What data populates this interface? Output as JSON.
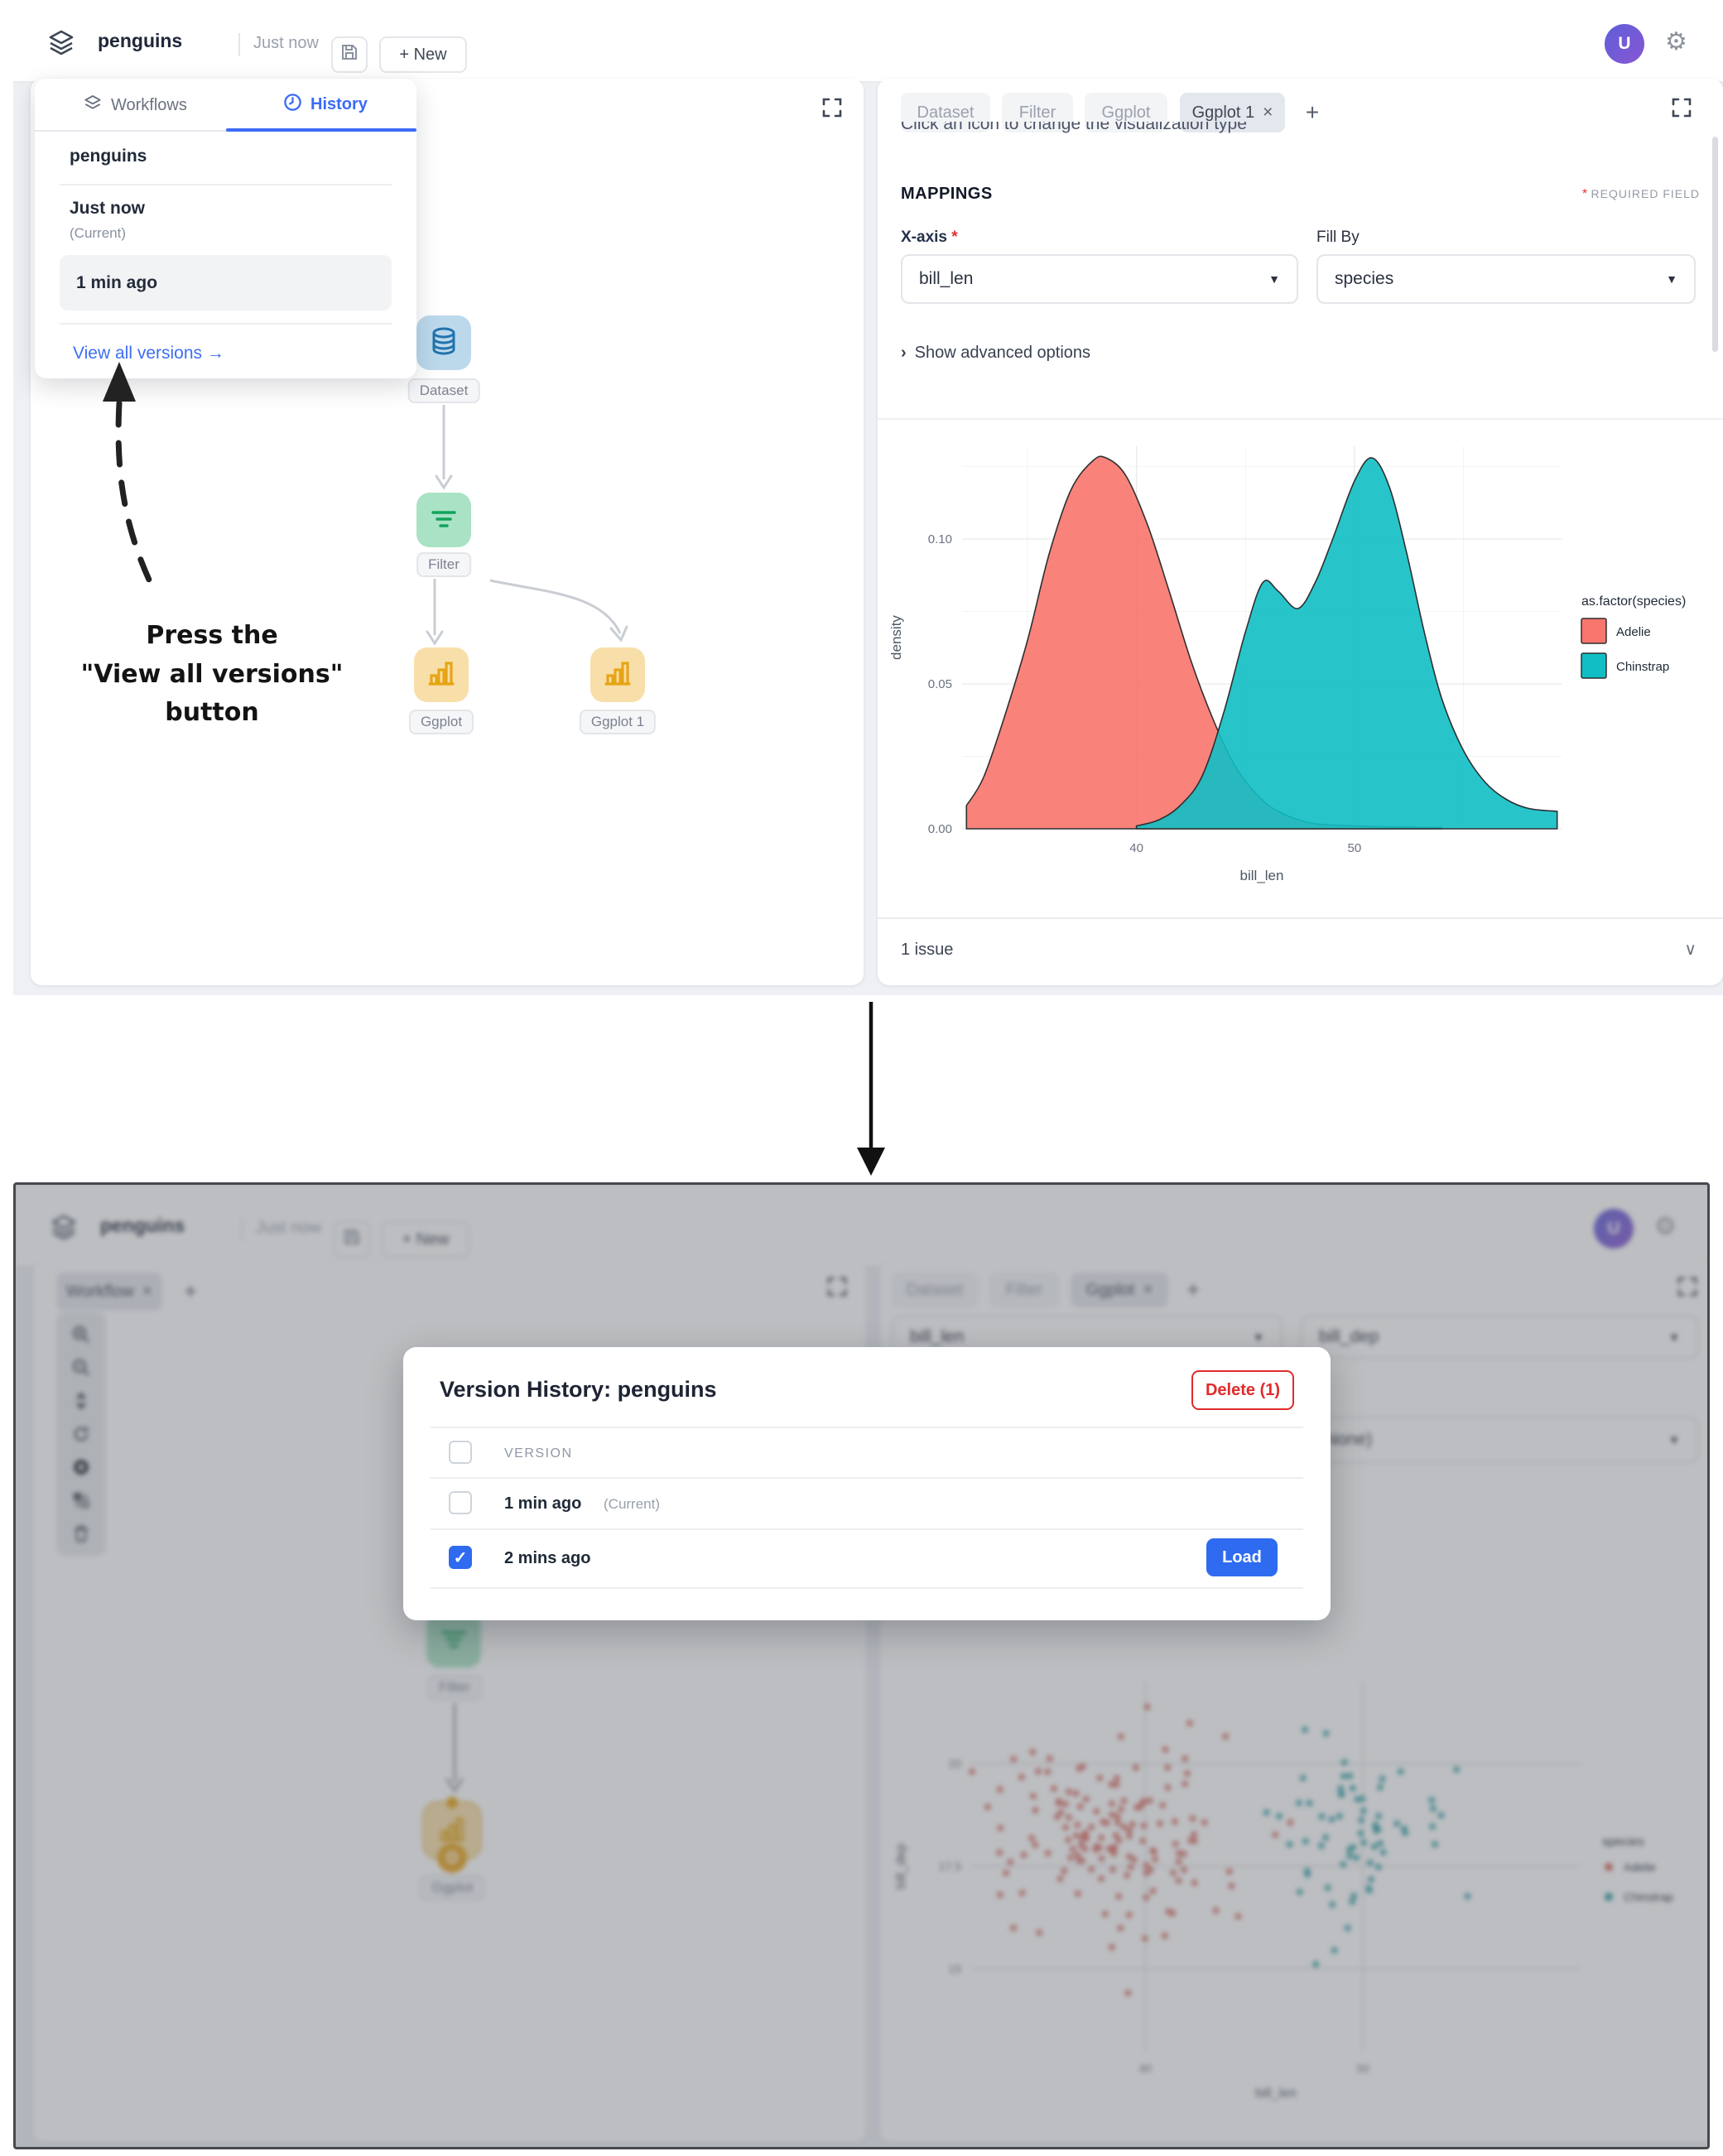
{
  "header": {
    "app_title": "penguins",
    "saved_status": "Just now",
    "new_button": "+ New",
    "avatar_letter": "U"
  },
  "glyphs": {
    "gear": "⚙",
    "dropdown_arrow": "▼",
    "plus": "+",
    "close": "×",
    "chevron_right": "›",
    "chevron_down": "∨",
    "check": "✓"
  },
  "top": {
    "history_popover": {
      "tab_workflows": "Workflows",
      "tab_history": "History",
      "workflow_name": "penguins",
      "versions": [
        {
          "label": "Just now",
          "sub": "(Current)"
        },
        {
          "label": "1 min ago"
        }
      ],
      "view_all": "View all versions →"
    },
    "workflow": {
      "nodes": [
        {
          "label": "Dataset"
        },
        {
          "label": "Filter"
        },
        {
          "label": "Ggplot"
        },
        {
          "label": "Ggplot 1"
        }
      ]
    },
    "panel": {
      "tabs": [
        "Dataset",
        "Filter",
        "Ggplot",
        "Ggplot 1"
      ],
      "clipped_hint": "Click an icon to change the visualization type",
      "mappings_title": "MAPPINGS",
      "required_note": "REQUIRED FIELD",
      "xaxis_label": "X-axis",
      "fill_label": "Fill By",
      "xaxis_value": "bill_len",
      "fill_value": "species",
      "advanced": "Show advanced options",
      "issues": "1 issue"
    }
  },
  "annotation": {
    "line1": "Press the",
    "line2": "\"View all versions\"",
    "line3": "button"
  },
  "modal": {
    "title": "Version History: penguins",
    "delete_button": "Delete (1)",
    "column": "VERSION",
    "rows": [
      {
        "label": "1 min ago",
        "sub": "(Current)",
        "checked": false
      },
      {
        "label": "2 mins ago",
        "sub": "",
        "checked": true
      }
    ],
    "load_button": "Load"
  },
  "bottom": {
    "left_tab": "Workflow",
    "panel_tabs": [
      "Dataset",
      "Filter",
      "Ggplot"
    ],
    "dropdown1": "bill_len",
    "dropdown2": "bill_dep",
    "dropdown3": "(None)",
    "workflow_nodes": [
      {
        "label": "Filter"
      },
      {
        "label": "Ggplot"
      }
    ]
  },
  "chart_data": [
    {
      "type": "area",
      "title": "",
      "xlabel": "bill_len",
      "ylabel": "density",
      "xlim": [
        32,
        59.5
      ],
      "ylim": [
        0,
        0.132
      ],
      "xticks": [
        "40",
        "50"
      ],
      "yticks": [
        "0.00",
        "0.05",
        "0.10"
      ],
      "grid": true,
      "legend_position": "right",
      "legend_title": "as.factor(species)",
      "series": [
        {
          "name": "Adelie",
          "color": "#F8766D",
          "points": [
            [
              32.2,
              0.008
            ],
            [
              33,
              0.018
            ],
            [
              34,
              0.04
            ],
            [
              35,
              0.065
            ],
            [
              36,
              0.095
            ],
            [
              37,
              0.117
            ],
            [
              38,
              0.127
            ],
            [
              38.6,
              0.128
            ],
            [
              39.5,
              0.122
            ],
            [
              40.5,
              0.105
            ],
            [
              41.5,
              0.082
            ],
            [
              42.5,
              0.058
            ],
            [
              43.5,
              0.038
            ],
            [
              44.5,
              0.022
            ],
            [
              45.5,
              0.012
            ],
            [
              46.5,
              0.006
            ],
            [
              48,
              0.002
            ],
            [
              50,
              0.001
            ],
            [
              52,
              0.0006
            ],
            [
              54,
              0.0004
            ]
          ]
        },
        {
          "name": "Chinstrap",
          "color": "#0FBFC4",
          "points": [
            [
              40,
              0.001
            ],
            [
              41,
              0.003
            ],
            [
              42,
              0.008
            ],
            [
              43,
              0.018
            ],
            [
              44,
              0.04
            ],
            [
              45,
              0.068
            ],
            [
              45.8,
              0.085
            ],
            [
              46.5,
              0.082
            ],
            [
              47.4,
              0.076
            ],
            [
              48.2,
              0.085
            ],
            [
              49,
              0.1
            ],
            [
              50,
              0.12
            ],
            [
              50.8,
              0.128
            ],
            [
              51.6,
              0.118
            ],
            [
              52.4,
              0.095
            ],
            [
              53.2,
              0.068
            ],
            [
              54,
              0.045
            ],
            [
              55,
              0.027
            ],
            [
              56,
              0.016
            ],
            [
              57,
              0.01
            ],
            [
              58,
              0.007
            ],
            [
              59.3,
              0.006
            ]
          ]
        }
      ]
    },
    {
      "type": "scatter",
      "title": "",
      "xlabel": "bill_len",
      "ylabel": "bill_dep",
      "xlim": [
        32,
        60
      ],
      "ylim": [
        13,
        22
      ],
      "xticks": [
        "40",
        "50"
      ],
      "yticks": [
        "15",
        "17.5",
        "20"
      ],
      "grid": true,
      "legend_position": "right",
      "legend_title": "species",
      "series": [
        {
          "name": "Adelie",
          "color": "#D96A5F",
          "cluster": {
            "cx": 38.8,
            "cy": 18.35,
            "sx": 2.6,
            "sy": 1.25,
            "n": 150,
            "seed": 7
          }
        },
        {
          "name": "Chinstrap",
          "color": "#2F9FA4",
          "cluster": {
            "cx": 48.9,
            "cy": 18.3,
            "sx": 2.3,
            "sy": 1.15,
            "n": 68,
            "seed": 13
          }
        }
      ]
    }
  ]
}
